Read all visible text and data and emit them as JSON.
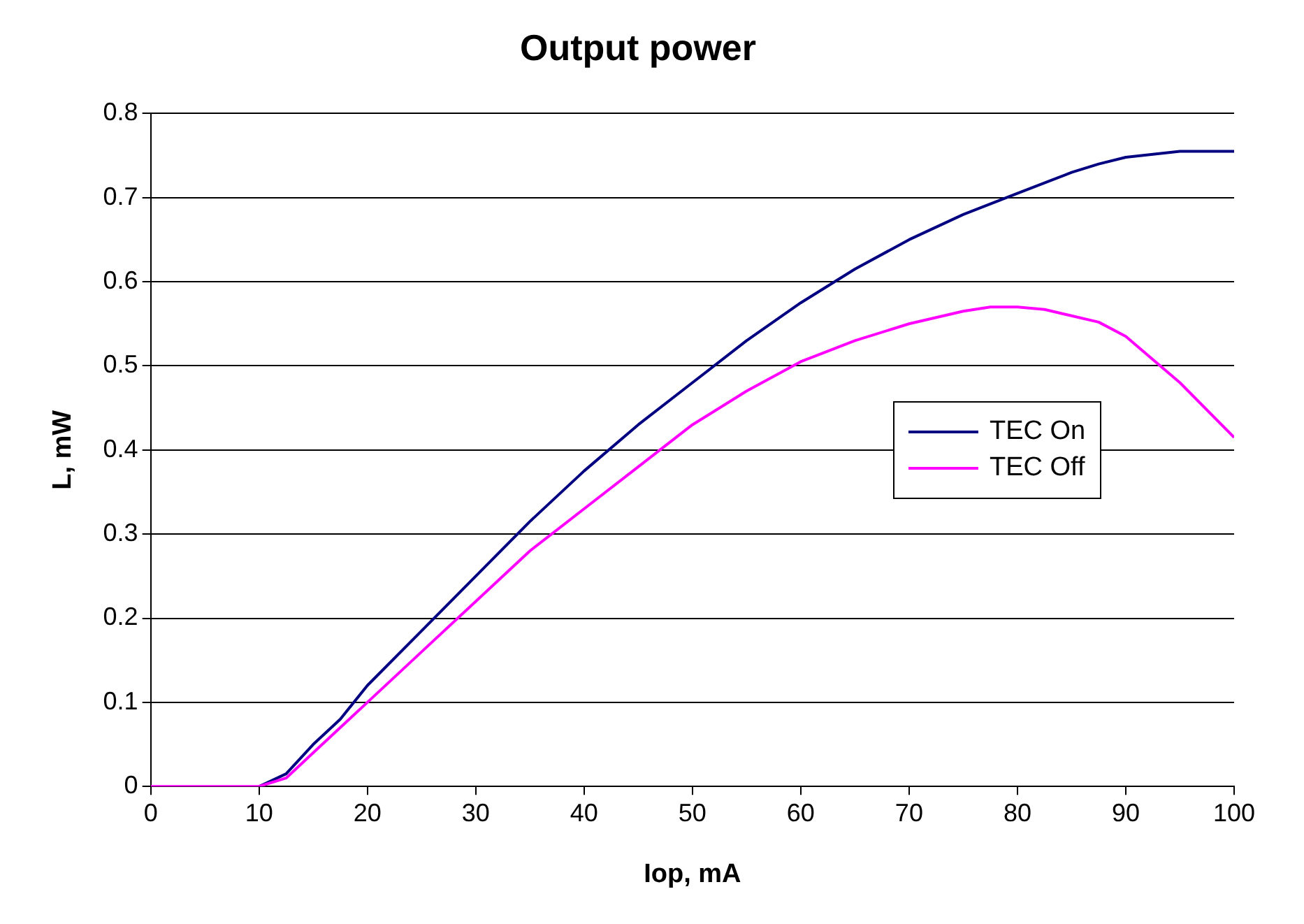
{
  "chart_data": {
    "type": "line",
    "title": "Output power",
    "xlabel": "Iop, mA",
    "ylabel": "L, mW",
    "xlim": [
      0,
      100
    ],
    "xticks": [
      0,
      10,
      20,
      30,
      40,
      50,
      60,
      70,
      80,
      90,
      100
    ],
    "ylim": [
      0,
      0.8
    ],
    "yticks": [
      0,
      0.1,
      0.2,
      0.3,
      0.4,
      0.5,
      0.6,
      0.7,
      0.8
    ],
    "grid": "y",
    "legend": "right",
    "marker": "none",
    "line_style": "solid",
    "series": [
      {
        "name": "TEC On",
        "color": "#000080",
        "x": [
          10,
          12.5,
          15,
          17.5,
          20,
          25,
          30,
          35,
          40,
          45,
          50,
          55,
          60,
          65,
          70,
          75,
          80,
          85,
          87.5,
          90,
          95,
          100
        ],
        "values": [
          0,
          0.015,
          0.05,
          0.08,
          0.12,
          0.185,
          0.25,
          0.315,
          0.375,
          0.43,
          0.48,
          0.53,
          0.575,
          0.615,
          0.65,
          0.68,
          0.705,
          0.73,
          0.74,
          0.748,
          0.755,
          0.755
        ]
      },
      {
        "name": "TEC Off",
        "color": "#ff00ff",
        "x": [
          0,
          1,
          10,
          12.5,
          15,
          20,
          25,
          30,
          35,
          40,
          45,
          50,
          55,
          60,
          65,
          70,
          75,
          77.5,
          80,
          82.5,
          87.5,
          90,
          95,
          100
        ],
        "values": [
          0,
          0,
          0,
          0.01,
          0.04,
          0.1,
          0.16,
          0.22,
          0.28,
          0.33,
          0.38,
          0.43,
          0.47,
          0.505,
          0.53,
          0.55,
          0.565,
          0.57,
          0.57,
          0.567,
          0.552,
          0.535,
          0.48,
          0.415
        ]
      }
    ]
  }
}
